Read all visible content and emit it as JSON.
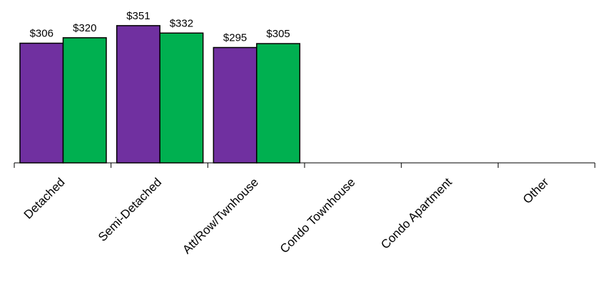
{
  "chart_data": {
    "type": "bar",
    "categories": [
      "Detached",
      "Semi-Detached",
      "Att/Row/Twnhouse",
      "Condo Townhouse",
      "Condo Apartment",
      "Other"
    ],
    "series": [
      {
        "values": [
          306,
          351,
          295,
          null,
          null,
          null
        ],
        "labels": [
          "$306",
          "$351",
          "$295",
          "",
          "",
          ""
        ],
        "color": "#7030A0"
      },
      {
        "values": [
          320,
          332,
          305,
          null,
          null,
          null
        ],
        "labels": [
          "$320",
          "$332",
          "$305",
          "",
          "",
          ""
        ],
        "color": "#00B050"
      }
    ],
    "title": "",
    "xlabel": "",
    "ylabel": "",
    "ylim": [
      0,
      380
    ],
    "grid": false,
    "legend": "none"
  }
}
